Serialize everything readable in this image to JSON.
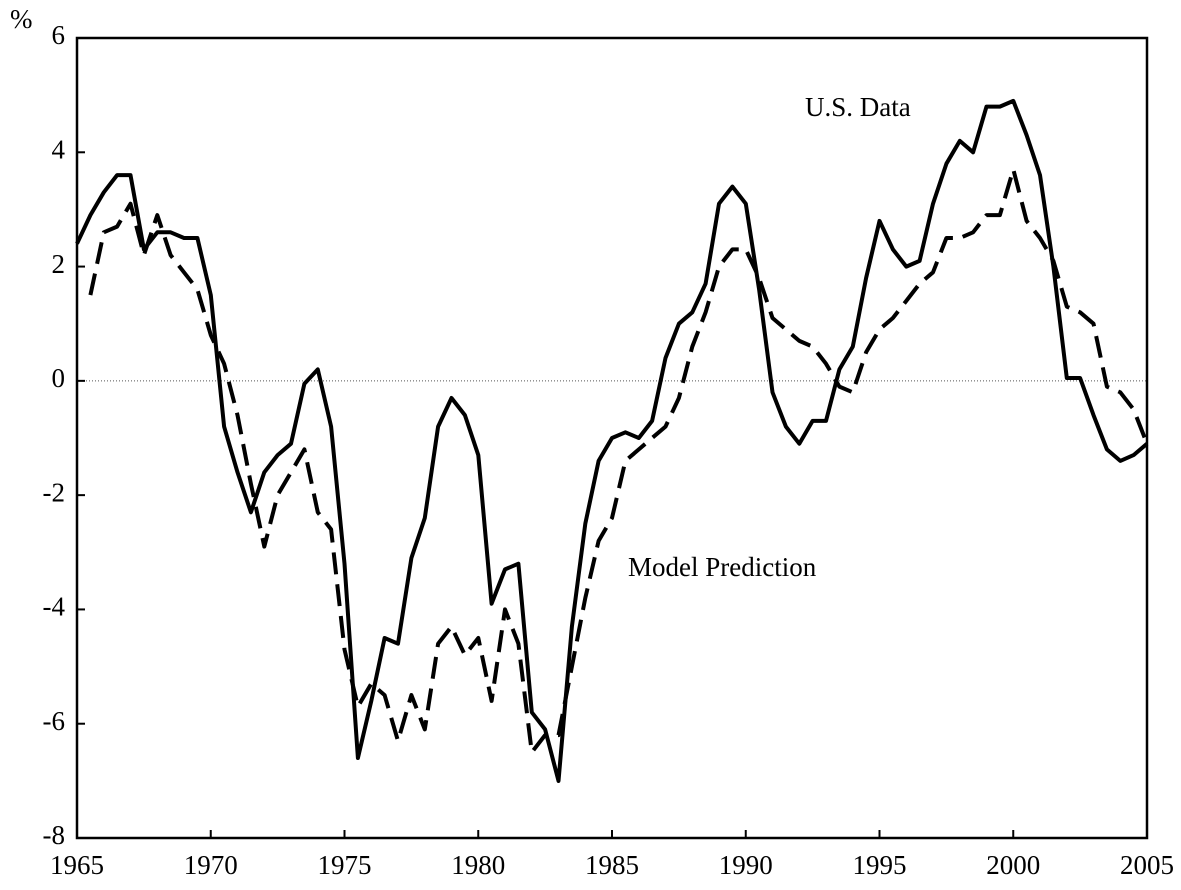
{
  "chart_data": {
    "type": "line",
    "ylabel": "%",
    "x": [
      1965,
      1965.5,
      1966,
      1966.5,
      1967,
      1967.5,
      1968,
      1968.5,
      1969,
      1969.5,
      1970,
      1970.5,
      1971,
      1971.5,
      1972,
      1972.5,
      1973,
      1973.5,
      1974,
      1974.5,
      1975,
      1975.5,
      1976,
      1976.5,
      1977,
      1977.5,
      1978,
      1978.5,
      1979,
      1979.5,
      1980,
      1980.5,
      1981,
      1981.5,
      1982,
      1982.5,
      1983,
      1983.5,
      1984,
      1984.5,
      1985,
      1985.5,
      1986,
      1986.5,
      1987,
      1987.5,
      1988,
      1988.5,
      1989,
      1989.5,
      1990,
      1990.5,
      1991,
      1991.5,
      1992,
      1992.5,
      1993,
      1993.5,
      1994,
      1994.5,
      1995,
      1995.5,
      1996,
      1996.5,
      1997,
      1997.5,
      1998,
      1998.5,
      1999,
      1999.5,
      2000,
      2000.5,
      2001,
      2001.5,
      2002,
      2002.5,
      2003,
      2003.5,
      2004,
      2004.5,
      2005
    ],
    "series": [
      {
        "name": "U.S. Data",
        "color": "#000000",
        "dashed": false,
        "values": [
          2.4,
          2.9,
          3.3,
          3.6,
          3.6,
          2.3,
          2.6,
          2.6,
          2.5,
          2.5,
          1.5,
          -0.8,
          -1.6,
          -2.3,
          -1.6,
          -1.3,
          -1.1,
          -0.05,
          0.2,
          -0.8,
          -3.2,
          -6.6,
          -5.6,
          -4.5,
          -4.6,
          -3.1,
          -2.4,
          -0.8,
          -0.3,
          -0.6,
          -1.3,
          -3.9,
          -3.3,
          -3.2,
          -5.8,
          -6.1,
          -7.0,
          -4.3,
          -2.5,
          -1.4,
          -1.0,
          -0.9,
          -1.0,
          -0.7,
          0.4,
          1.0,
          1.2,
          1.7,
          3.1,
          3.4,
          3.1,
          1.6,
          -0.2,
          -0.8,
          -1.1,
          -0.7,
          -0.7,
          0.2,
          0.6,
          1.8,
          2.8,
          2.3,
          2.0,
          2.1,
          3.1,
          3.8,
          4.2,
          4.0,
          4.8,
          4.8,
          4.9,
          4.3,
          3.6,
          2.0,
          0.05,
          0.05,
          -0.6,
          -1.2,
          -1.4,
          -1.3,
          -1.1
        ]
      },
      {
        "name": "Model Prediction",
        "color": "#000000",
        "dashed": true,
        "values": [
          null,
          1.5,
          2.6,
          2.7,
          3.1,
          2.2,
          2.9,
          2.2,
          1.9,
          1.6,
          0.8,
          0.3,
          -0.6,
          -1.8,
          -2.9,
          -2.0,
          -1.6,
          -1.2,
          -2.3,
          -2.6,
          -4.7,
          -5.7,
          -5.3,
          -5.5,
          -6.3,
          -5.5,
          -6.1,
          -4.6,
          -4.3,
          -4.8,
          -4.5,
          -5.6,
          -4.0,
          -4.6,
          -6.5,
          -6.2,
          -6.2,
          -5.0,
          -3.8,
          -2.8,
          -2.4,
          -1.4,
          -1.2,
          -1.0,
          -0.8,
          -0.3,
          0.6,
          1.2,
          2.0,
          2.3,
          2.3,
          1.8,
          1.1,
          0.9,
          0.7,
          0.6,
          0.3,
          -0.1,
          -0.2,
          0.5,
          0.9,
          1.1,
          1.4,
          1.7,
          1.9,
          2.5,
          2.5,
          2.6,
          2.9,
          2.9,
          3.7,
          2.8,
          2.5,
          2.1,
          1.3,
          1.2,
          1.0,
          -0.1,
          -0.2,
          -0.5,
          -1.1
        ]
      }
    ],
    "xlim": [
      1965,
      2005
    ],
    "xticks": [
      1965,
      1970,
      1975,
      1980,
      1985,
      1990,
      1995,
      2000,
      2005
    ],
    "ylim": [
      -8,
      6
    ],
    "yticks": [
      -8,
      -6,
      -4,
      -2,
      0,
      2,
      4,
      6
    ],
    "zero_line": true,
    "grid": false
  }
}
